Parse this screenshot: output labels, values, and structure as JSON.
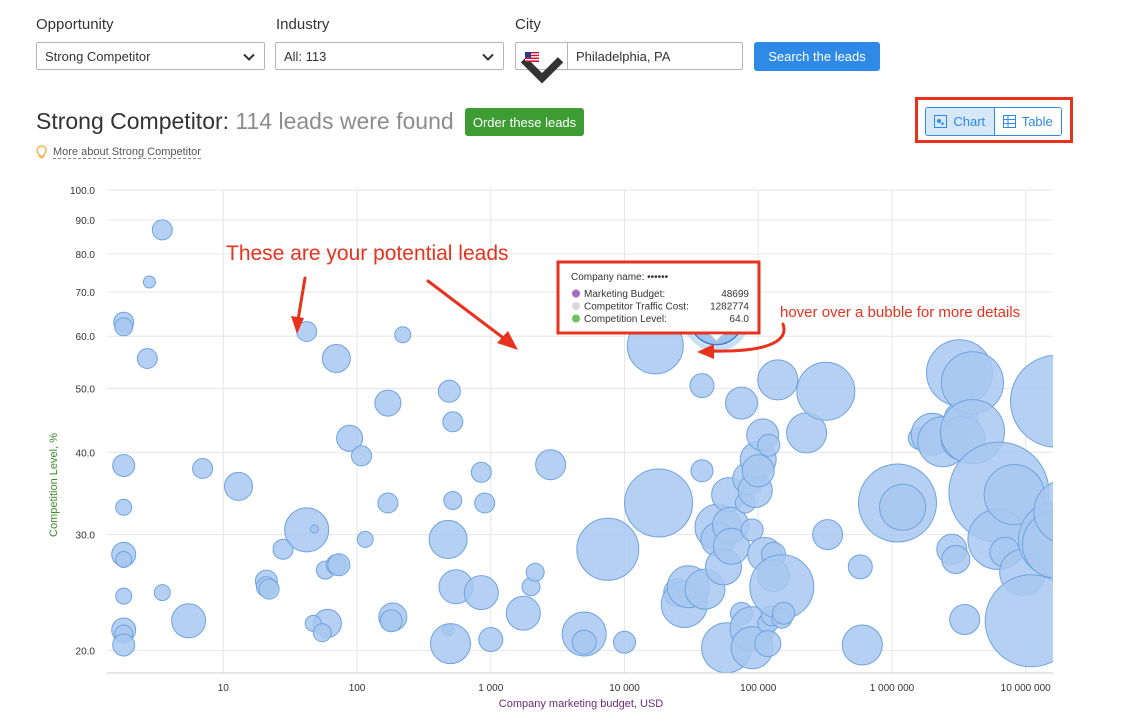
{
  "filters": {
    "opportunity": {
      "label": "Opportunity",
      "value": "Strong Competitor"
    },
    "industry": {
      "label": "Industry",
      "value": "All: 113"
    },
    "city": {
      "label": "City",
      "value": "Philadelphia, PA",
      "country_flag": "us-flag-icon"
    },
    "search_button": "Search the leads"
  },
  "result": {
    "type": "Strong Competitor:",
    "count_text": "114 leads were found",
    "order_button": "Order these leads",
    "more_link": "More about Strong Competitor"
  },
  "view_toggle": {
    "chart": "Chart",
    "table": "Table",
    "active": "chart"
  },
  "annotations": {
    "leads_note": "These are your potential leads",
    "hover_note": "hover over a bubble for more details"
  },
  "tooltip": {
    "title": "Company name: ••••••",
    "rows": [
      {
        "label": "Marketing Budget:",
        "value": "48699",
        "color": "#a66bbf"
      },
      {
        "label": "Competitor Traffic Cost:",
        "value": "1282774",
        "color": "#d9d9d9"
      },
      {
        "label": "Competition Level:",
        "value": "64.0",
        "color": "#6ec45a"
      }
    ]
  },
  "colors": {
    "bubble_fill": "#a8c8f0",
    "bubble_stroke": "#6fa3e0",
    "accent": "#2e8ae6",
    "annotation": "#e8321e",
    "order": "#3d9c33"
  },
  "chart_data": {
    "type": "scatter",
    "xlabel": "Company marketing budget, USD",
    "ylabel": "Competition Level, %",
    "x_scale": "log",
    "y_scale": "log",
    "xlim": [
      1.35,
      16000000
    ],
    "ylim": [
      18.5,
      100
    ],
    "x_ticks": [
      {
        "value": 10,
        "label": "10"
      },
      {
        "value": 100,
        "label": "100"
      },
      {
        "value": 1000,
        "label": "1 000"
      },
      {
        "value": 10000,
        "label": "10 000"
      },
      {
        "value": 100000,
        "label": "100 000"
      },
      {
        "value": 1000000,
        "label": "1 000 000"
      },
      {
        "value": 10000000,
        "label": "10 000 000"
      }
    ],
    "y_ticks": [
      {
        "value": 20,
        "label": "20.0"
      },
      {
        "value": 30,
        "label": "30.0"
      },
      {
        "value": 40,
        "label": "40.0"
      },
      {
        "value": 50,
        "label": "50.0"
      },
      {
        "value": 60,
        "label": "60.0"
      },
      {
        "value": 70,
        "label": "70.0"
      },
      {
        "value": 80,
        "label": "80.0"
      },
      {
        "value": 90,
        "label": "90.0"
      },
      {
        "value": 100,
        "label": "100.0"
      }
    ],
    "grid": true,
    "highlighted": {
      "x": 48699,
      "y": 64.0,
      "size": 1282774
    },
    "points": [
      [
        3.5,
        87,
        10
      ],
      [
        2.8,
        72.5,
        6
      ],
      [
        1.8,
        63,
        10
      ],
      [
        1.8,
        62,
        9
      ],
      [
        2.7,
        55.5,
        10
      ],
      [
        1.8,
        38.2,
        11
      ],
      [
        1.8,
        33,
        8
      ],
      [
        1.8,
        28,
        12
      ],
      [
        1.8,
        27.5,
        8
      ],
      [
        1.8,
        24.2,
        8
      ],
      [
        1.8,
        21.5,
        12
      ],
      [
        1.8,
        21.2,
        9
      ],
      [
        1.8,
        20.4,
        11
      ],
      [
        3.5,
        24.5,
        8
      ],
      [
        5.5,
        22.2,
        17
      ],
      [
        7,
        37.8,
        10
      ],
      [
        13,
        35.5,
        14
      ],
      [
        21,
        25.5,
        11
      ],
      [
        21,
        25,
        10
      ],
      [
        22,
        24.8,
        10
      ],
      [
        28,
        28.5,
        10
      ],
      [
        42,
        30.5,
        22
      ],
      [
        48,
        30.6,
        4
      ],
      [
        58,
        26.5,
        9
      ],
      [
        60,
        22,
        14
      ],
      [
        47,
        22,
        8
      ],
      [
        55,
        21.3,
        9
      ],
      [
        42,
        61,
        10
      ],
      [
        70,
        55.5,
        14
      ],
      [
        70,
        27,
        10
      ],
      [
        73,
        27,
        11
      ],
      [
        88,
        42,
        13
      ],
      [
        108,
        39.5,
        10
      ],
      [
        115,
        29.5,
        8
      ],
      [
        170,
        47.5,
        13
      ],
      [
        170,
        33.5,
        10
      ],
      [
        185,
        22.5,
        14
      ],
      [
        180,
        22.2,
        11
      ],
      [
        220,
        60.3,
        8
      ],
      [
        490,
        49.5,
        11
      ],
      [
        520,
        44.5,
        10
      ],
      [
        480,
        29.5,
        19
      ],
      [
        520,
        33.8,
        9
      ],
      [
        550,
        25,
        17
      ],
      [
        480,
        21.5,
        6
      ],
      [
        500,
        20.5,
        20
      ],
      [
        850,
        37.3,
        10
      ],
      [
        850,
        24.5,
        17
      ],
      [
        900,
        33.5,
        10
      ],
      [
        1000,
        20.8,
        12
      ],
      [
        1750,
        22.8,
        17
      ],
      [
        2000,
        25,
        9
      ],
      [
        2150,
        26.3,
        9
      ],
      [
        2800,
        38.3,
        15
      ],
      [
        5000,
        21.2,
        22
      ],
      [
        5000,
        20.6,
        12
      ],
      [
        7500,
        28.5,
        31
      ],
      [
        10000,
        20.6,
        11
      ],
      [
        17000,
        58,
        28
      ],
      [
        18000,
        33.5,
        34
      ],
      [
        25000,
        24.5,
        14
      ],
      [
        28000,
        23.5,
        23
      ],
      [
        30000,
        25,
        21
      ],
      [
        38000,
        50.5,
        12
      ],
      [
        38000,
        37.5,
        11
      ],
      [
        40000,
        24.8,
        20
      ],
      [
        50000,
        30.8,
        23
      ],
      [
        50000,
        29.5,
        17
      ],
      [
        55000,
        26.8,
        18
      ],
      [
        58000,
        20.2,
        25
      ],
      [
        60000,
        34.5,
        17
      ],
      [
        62000,
        31,
        18
      ],
      [
        63000,
        28.8,
        18
      ],
      [
        75000,
        47.5,
        16
      ],
      [
        75000,
        22.8,
        11
      ],
      [
        80000,
        33.5,
        10
      ],
      [
        85000,
        36.5,
        16
      ],
      [
        90000,
        30.5,
        11
      ],
      [
        90000,
        21.6,
        22
      ],
      [
        90000,
        20.2,
        21
      ],
      [
        95000,
        35,
        17
      ],
      [
        100000,
        39,
        18
      ],
      [
        100000,
        37.5,
        16
      ],
      [
        108000,
        42.5,
        16
      ],
      [
        112000,
        28,
        17
      ],
      [
        118000,
        22,
        10
      ],
      [
        118000,
        20.5,
        13
      ],
      [
        120000,
        41,
        11
      ],
      [
        125000,
        22.6,
        10
      ],
      [
        130000,
        28,
        12
      ],
      [
        130000,
        26,
        16
      ],
      [
        140000,
        51.5,
        20
      ],
      [
        150000,
        25,
        32
      ],
      [
        150000,
        22.4,
        10
      ],
      [
        155000,
        22.8,
        11
      ],
      [
        230000,
        42.8,
        20
      ],
      [
        320000,
        49.5,
        29
      ],
      [
        330000,
        30,
        15
      ],
      [
        580000,
        26.8,
        12
      ],
      [
        600000,
        20.4,
        20
      ],
      [
        1100000,
        33.5,
        39
      ],
      [
        1200000,
        33,
        23
      ],
      [
        1600000,
        42,
        11
      ],
      [
        2000000,
        42.6,
        21
      ],
      [
        2400000,
        41.5,
        25
      ],
      [
        2800000,
        28.5,
        15
      ],
      [
        3000000,
        27.5,
        14
      ],
      [
        3200000,
        52.8,
        33
      ],
      [
        3300000,
        45,
        17
      ],
      [
        3400000,
        42,
        22
      ],
      [
        3500000,
        22.3,
        15
      ],
      [
        3600000,
        46.6,
        9
      ],
      [
        4000000,
        51,
        31
      ],
      [
        4000000,
        43,
        32
      ],
      [
        6300000,
        34.8,
        50
      ],
      [
        6200000,
        29.5,
        30
      ],
      [
        7000000,
        28.2,
        15
      ],
      [
        8200000,
        34.5,
        30
      ],
      [
        9500000,
        26.3,
        23
      ],
      [
        11000000,
        22.2,
        46
      ],
      [
        17000000,
        47.8,
        46
      ],
      [
        17000000,
        29.5,
        38
      ],
      [
        17000000,
        29,
        34
      ],
      [
        20000000,
        32.5,
        32
      ]
    ]
  }
}
